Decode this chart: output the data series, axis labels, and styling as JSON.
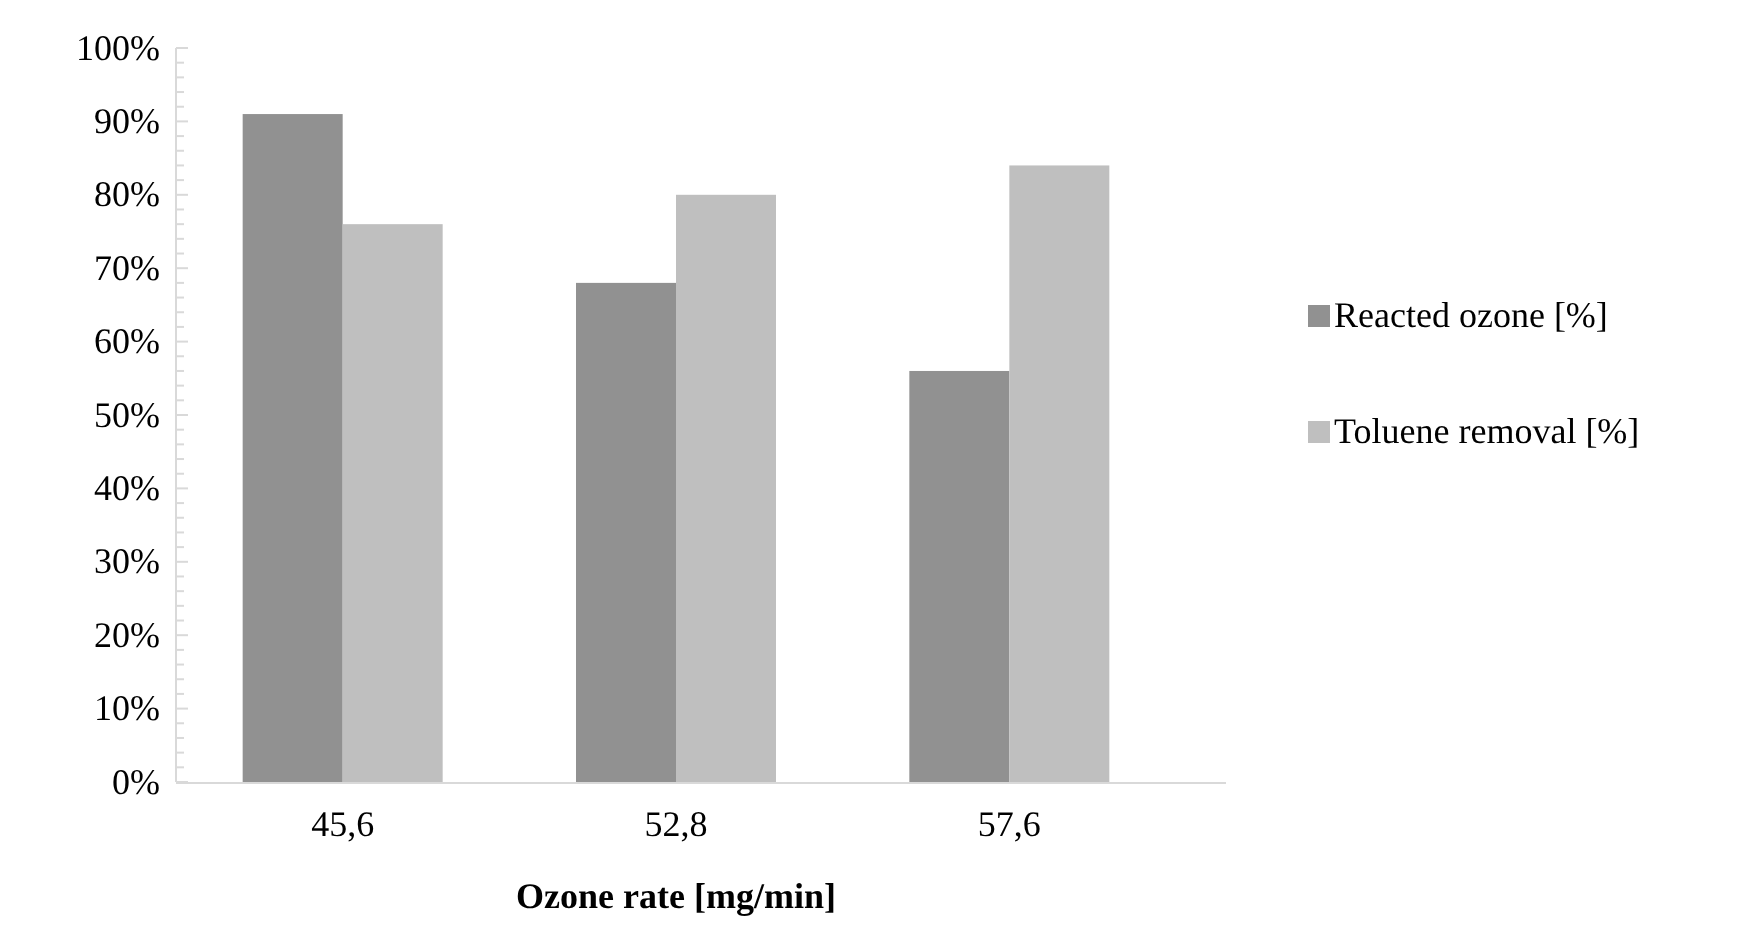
{
  "chart_data": {
    "type": "bar",
    "xlabel": "Ozone rate [mg/min]",
    "categories": [
      "45,6",
      "52,8",
      "57,6"
    ],
    "series": [
      {
        "name": "Reacted ozone [%]",
        "color": "#919191",
        "values": [
          91,
          68,
          56
        ]
      },
      {
        "name": "Toluene removal [%]",
        "color": "#bfbfbf",
        "values": [
          76,
          80,
          84
        ]
      }
    ],
    "ylim": [
      0,
      100
    ],
    "yticks": [
      {
        "value": 0,
        "label": "0%"
      },
      {
        "value": 2,
        "label": null
      },
      {
        "value": 4,
        "label": null
      },
      {
        "value": 6,
        "label": null
      },
      {
        "value": 8,
        "label": null
      },
      {
        "value": 10,
        "label": "10%"
      },
      {
        "value": 12,
        "label": null
      },
      {
        "value": 14,
        "label": null
      },
      {
        "value": 16,
        "label": null
      },
      {
        "value": 18,
        "label": null
      },
      {
        "value": 20,
        "label": "20%"
      },
      {
        "value": 22,
        "label": null
      },
      {
        "value": 24,
        "label": null
      },
      {
        "value": 26,
        "label": null
      },
      {
        "value": 28,
        "label": null
      },
      {
        "value": 30,
        "label": "30%"
      },
      {
        "value": 32,
        "label": null
      },
      {
        "value": 34,
        "label": null
      },
      {
        "value": 36,
        "label": null
      },
      {
        "value": 38,
        "label": null
      },
      {
        "value": 40,
        "label": "40%"
      },
      {
        "value": 42,
        "label": null
      },
      {
        "value": 44,
        "label": null
      },
      {
        "value": 46,
        "label": null
      },
      {
        "value": 48,
        "label": null
      },
      {
        "value": 50,
        "label": "50%"
      },
      {
        "value": 52,
        "label": null
      },
      {
        "value": 54,
        "label": null
      },
      {
        "value": 56,
        "label": null
      },
      {
        "value": 58,
        "label": null
      },
      {
        "value": 60,
        "label": "60%"
      },
      {
        "value": 62,
        "label": null
      },
      {
        "value": 64,
        "label": null
      },
      {
        "value": 66,
        "label": null
      },
      {
        "value": 68,
        "label": null
      },
      {
        "value": 70,
        "label": "70%"
      },
      {
        "value": 72,
        "label": null
      },
      {
        "value": 74,
        "label": null
      },
      {
        "value": 76,
        "label": null
      },
      {
        "value": 78,
        "label": null
      },
      {
        "value": 80,
        "label": "80%"
      },
      {
        "value": 82,
        "label": null
      },
      {
        "value": 84,
        "label": null
      },
      {
        "value": 86,
        "label": null
      },
      {
        "value": 88,
        "label": null
      },
      {
        "value": 90,
        "label": "90%"
      },
      {
        "value": 92,
        "label": null
      },
      {
        "value": 94,
        "label": null
      },
      {
        "value": 96,
        "label": null
      },
      {
        "value": 98,
        "label": null
      },
      {
        "value": 100,
        "label": "100%"
      }
    ],
    "grid": false,
    "legend": "right"
  }
}
